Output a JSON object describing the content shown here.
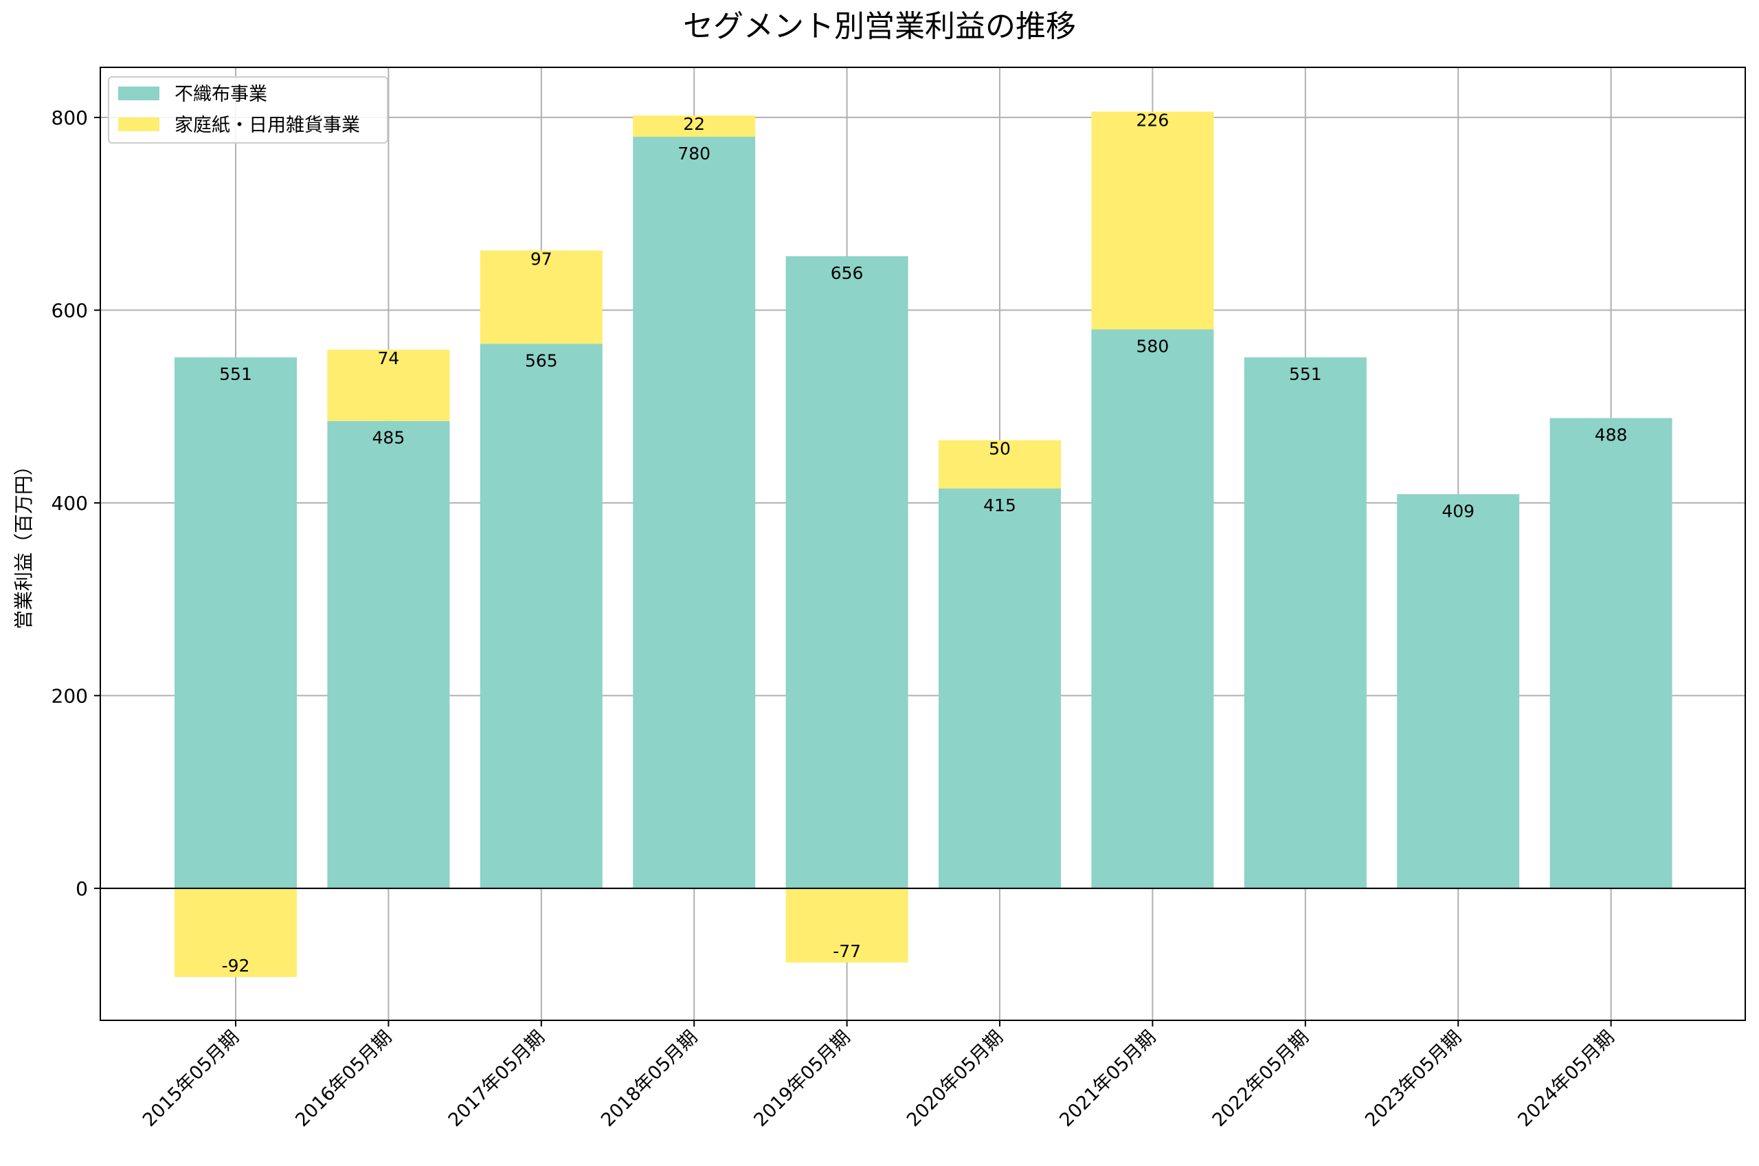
{
  "chart_data": {
    "type": "bar",
    "stacked": true,
    "title": "セグメント別営業利益の推移",
    "xlabel": "",
    "ylabel": "営業利益（百万円）",
    "ylim": [
      -137,
      852
    ],
    "yticks": [
      0,
      200,
      400,
      600,
      800
    ],
    "grid": true,
    "legend_position": "top-left",
    "categories": [
      "2015年05月期",
      "2016年05月期",
      "2017年05月期",
      "2018年05月期",
      "2019年05月期",
      "2020年05月期",
      "2021年05月期",
      "2022年05月期",
      "2023年05月期",
      "2024年05月期"
    ],
    "series": [
      {
        "name": "不織布事業",
        "color": "#8dd3c7",
        "values": [
          551,
          485,
          565,
          780,
          656,
          415,
          580,
          551,
          409,
          488
        ]
      },
      {
        "name": "家庭紙・日用雑貨事業",
        "color": "#ffed6f",
        "values": [
          -92,
          74,
          97,
          22,
          -77,
          50,
          226,
          null,
          null,
          null
        ]
      }
    ]
  }
}
